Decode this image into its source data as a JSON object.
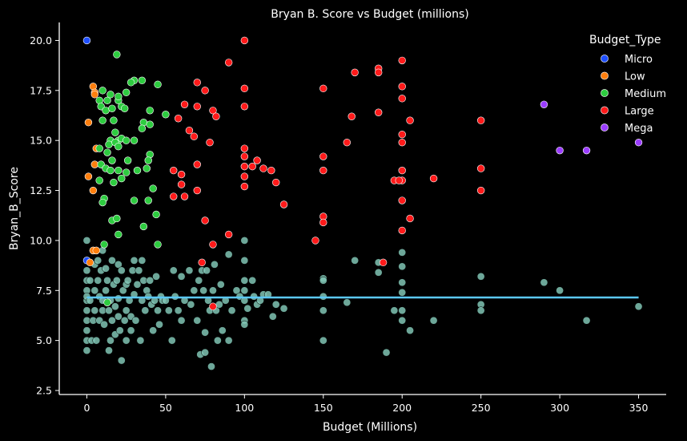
{
  "chart_data": {
    "type": "scatter",
    "title": "Bryan B. Score vs Budget (millions)",
    "xlabel": "Budget (Millions)",
    "ylabel": "Bryan_B_Score",
    "xlim": [
      -17.5,
      367.5
    ],
    "ylim": [
      2.3,
      20.9
    ],
    "x_ticks": [
      0,
      50,
      100,
      150,
      200,
      250,
      300,
      350
    ],
    "y_ticks": [
      2.5,
      5.0,
      7.5,
      10.0,
      12.5,
      15.0,
      17.5,
      20.0
    ],
    "y_tick_labels": [
      "2.5",
      "5.0",
      "7.5",
      "10.0",
      "12.5",
      "15.0",
      "17.5",
      "20.0"
    ],
    "grid": false,
    "legend": {
      "title": "Budget_Type",
      "placement": "top-right"
    },
    "background_series": {
      "color": "#80c4b4",
      "points": [
        [
          0,
          10.0
        ],
        [
          0,
          9.0
        ],
        [
          0,
          8.5
        ],
        [
          0,
          8.0
        ],
        [
          0,
          7.5
        ],
        [
          0,
          7.0
        ],
        [
          0,
          6.5
        ],
        [
          0,
          6.0
        ],
        [
          0,
          5.5
        ],
        [
          0,
          5.0
        ],
        [
          0,
          4.5
        ],
        [
          0,
          7.2
        ],
        [
          2,
          8.0
        ],
        [
          2,
          7.0
        ],
        [
          3,
          5.0
        ],
        [
          4,
          9.5
        ],
        [
          4,
          6.0
        ],
        [
          5,
          8.8
        ],
        [
          5,
          7.5
        ],
        [
          5,
          6.5
        ],
        [
          6,
          5.0
        ],
        [
          7,
          9.0
        ],
        [
          7,
          8.0
        ],
        [
          8,
          7.2
        ],
        [
          8,
          6.0
        ],
        [
          9,
          8.5
        ],
        [
          10,
          9.5
        ],
        [
          10,
          7.0
        ],
        [
          10,
          6.5
        ],
        [
          11,
          5.8
        ],
        [
          12,
          8.6
        ],
        [
          12,
          7.5
        ],
        [
          13,
          8.0
        ],
        [
          14,
          6.5
        ],
        [
          14,
          4.5
        ],
        [
          15,
          7.0
        ],
        [
          15,
          5.0
        ],
        [
          16,
          9.0
        ],
        [
          16,
          6.0
        ],
        [
          17,
          7.8
        ],
        [
          18,
          6.7
        ],
        [
          18,
          5.3
        ],
        [
          19,
          8.0
        ],
        [
          20,
          8.8
        ],
        [
          20,
          7.1
        ],
        [
          20,
          6.2
        ],
        [
          21,
          5.5
        ],
        [
          22,
          8.5
        ],
        [
          22,
          4.0
        ],
        [
          23,
          7.5
        ],
        [
          24,
          6.0
        ],
        [
          25,
          7.8
        ],
        [
          25,
          6.5
        ],
        [
          25,
          5.0
        ],
        [
          26,
          8.0
        ],
        [
          27,
          7.0
        ],
        [
          28,
          6.2
        ],
        [
          28,
          5.5
        ],
        [
          29,
          8.5
        ],
        [
          30,
          9.0
        ],
        [
          30,
          7.3
        ],
        [
          31,
          6.0
        ],
        [
          32,
          7.8
        ],
        [
          33,
          8.5
        ],
        [
          34,
          5.0
        ],
        [
          35,
          9.0
        ],
        [
          35,
          7.0
        ],
        [
          36,
          8.0
        ],
        [
          37,
          6.5
        ],
        [
          38,
          7.5
        ],
        [
          39,
          7.2
        ],
        [
          40,
          8.0
        ],
        [
          41,
          6.8
        ],
        [
          42,
          5.5
        ],
        [
          43,
          7.0
        ],
        [
          44,
          8.2
        ],
        [
          45,
          6.5
        ],
        [
          46,
          5.8
        ],
        [
          47,
          7.2
        ],
        [
          48,
          7.0
        ],
        [
          50,
          7.0
        ],
        [
          52,
          6.5
        ],
        [
          54,
          5.0
        ],
        [
          55,
          8.5
        ],
        [
          56,
          7.2
        ],
        [
          58,
          6.5
        ],
        [
          60,
          8.2
        ],
        [
          60,
          6.0
        ],
        [
          62,
          7.0
        ],
        [
          65,
          8.5
        ],
        [
          66,
          6.8
        ],
        [
          68,
          7.5
        ],
        [
          70,
          6.0
        ],
        [
          71,
          8.0
        ],
        [
          72,
          4.3
        ],
        [
          73,
          8.5
        ],
        [
          74,
          7.5
        ],
        [
          75,
          5.4
        ],
        [
          75,
          4.4
        ],
        [
          76,
          8.5
        ],
        [
          77,
          7.0
        ],
        [
          78,
          6.5
        ],
        [
          79,
          3.7
        ],
        [
          80,
          7.5
        ],
        [
          81,
          8.8
        ],
        [
          82,
          6.5
        ],
        [
          83,
          5.0
        ],
        [
          84,
          6.8
        ],
        [
          85,
          7.8
        ],
        [
          86,
          5.5
        ],
        [
          88,
          7.0
        ],
        [
          90,
          5.0
        ],
        [
          90,
          9.3
        ],
        [
          92,
          6.5
        ],
        [
          95,
          7.5
        ],
        [
          97,
          7.2
        ],
        [
          100,
          10.0
        ],
        [
          100,
          9.0
        ],
        [
          100,
          8.0
        ],
        [
          100,
          7.5
        ],
        [
          100,
          7.0
        ],
        [
          100,
          6.0
        ],
        [
          100,
          5.8
        ],
        [
          102,
          6.6
        ],
        [
          105,
          8.0
        ],
        [
          106,
          7.2
        ],
        [
          108,
          6.8
        ],
        [
          110,
          7.0
        ],
        [
          112,
          7.3
        ],
        [
          115,
          7.3
        ],
        [
          118,
          6.2
        ],
        [
          120,
          6.8
        ],
        [
          125,
          6.6
        ],
        [
          150,
          8.1
        ],
        [
          150,
          8.0
        ],
        [
          150,
          7.2
        ],
        [
          150,
          6.5
        ],
        [
          150,
          5.0
        ],
        [
          165,
          6.9
        ],
        [
          170,
          9.0
        ],
        [
          185,
          8.4
        ],
        [
          185,
          8.9
        ],
        [
          190,
          4.4
        ],
        [
          195,
          6.5
        ],
        [
          200,
          9.4
        ],
        [
          200,
          8.7
        ],
        [
          200,
          7.9
        ],
        [
          200,
          7.4
        ],
        [
          200,
          6.5
        ],
        [
          200,
          6.0
        ],
        [
          205,
          5.5
        ],
        [
          220,
          6.0
        ],
        [
          250,
          8.2
        ],
        [
          250,
          6.8
        ],
        [
          250,
          6.5
        ],
        [
          290,
          7.9
        ],
        [
          300,
          7.5
        ],
        [
          317,
          6.0
        ],
        [
          350,
          6.7
        ]
      ]
    },
    "series": [
      {
        "name": "Micro",
        "color": "#1f4fff",
        "points": [
          [
            0,
            20.0
          ],
          [
            0,
            9.0
          ]
        ]
      },
      {
        "name": "Low",
        "color": "#ff7f0e",
        "points": [
          [
            4,
            17.7
          ],
          [
            5,
            17.4
          ],
          [
            5,
            17.3
          ],
          [
            6,
            14.6
          ],
          [
            5,
            13.8
          ],
          [
            1,
            15.9
          ],
          [
            1,
            13.2
          ],
          [
            4,
            12.5
          ],
          [
            4,
            9.5
          ],
          [
            6,
            9.5
          ],
          [
            2,
            8.9
          ]
        ]
      },
      {
        "name": "Medium",
        "color": "#2ecc40",
        "points": [
          [
            19,
            19.3
          ],
          [
            30,
            18.0
          ],
          [
            35,
            18.0
          ],
          [
            45,
            17.8
          ],
          [
            10,
            17.5
          ],
          [
            13,
            17.0
          ],
          [
            15,
            17.3
          ],
          [
            20,
            17.0
          ],
          [
            20,
            17.2
          ],
          [
            22,
            16.7
          ],
          [
            25,
            17.4
          ],
          [
            28,
            17.9
          ],
          [
            8,
            17.0
          ],
          [
            9,
            16.7
          ],
          [
            12,
            16.5
          ],
          [
            16,
            16.6
          ],
          [
            24,
            16.6
          ],
          [
            40,
            16.5
          ],
          [
            10,
            16.0
          ],
          [
            17,
            16.0
          ],
          [
            36,
            15.9
          ],
          [
            40,
            15.8
          ],
          [
            35,
            15.6
          ],
          [
            50,
            16.3
          ],
          [
            15,
            15.0
          ],
          [
            18,
            15.4
          ],
          [
            20,
            15.0
          ],
          [
            22,
            15.1
          ],
          [
            25,
            15.0
          ],
          [
            30,
            15.0
          ],
          [
            14,
            14.8
          ],
          [
            18,
            14.9
          ],
          [
            20,
            14.7
          ],
          [
            8,
            14.6
          ],
          [
            40,
            14.3
          ],
          [
            13,
            14.4
          ],
          [
            16,
            14.0
          ],
          [
            26,
            14.0
          ],
          [
            39,
            14.0
          ],
          [
            9,
            13.8
          ],
          [
            12,
            13.6
          ],
          [
            15,
            13.5
          ],
          [
            20,
            13.5
          ],
          [
            25,
            13.4
          ],
          [
            32,
            13.5
          ],
          [
            38,
            13.6
          ],
          [
            8,
            13.0
          ],
          [
            17,
            12.9
          ],
          [
            22,
            13.1
          ],
          [
            42,
            12.6
          ],
          [
            30,
            12.0
          ],
          [
            11,
            12.1
          ],
          [
            39,
            12.0
          ],
          [
            10,
            11.9
          ],
          [
            16,
            11.0
          ],
          [
            19,
            11.1
          ],
          [
            44,
            11.3
          ],
          [
            36,
            10.7
          ],
          [
            20,
            10.3
          ],
          [
            11,
            9.8
          ],
          [
            45,
            9.8
          ],
          [
            13,
            6.9
          ]
        ]
      },
      {
        "name": "Large",
        "color": "#ff1a1a",
        "points": [
          [
            100,
            20.0
          ],
          [
            90,
            18.9
          ],
          [
            200,
            19.0
          ],
          [
            170,
            18.4
          ],
          [
            185,
            18.6
          ],
          [
            185,
            18.4
          ],
          [
            70,
            17.9
          ],
          [
            75,
            17.5
          ],
          [
            100,
            17.6
          ],
          [
            150,
            17.6
          ],
          [
            200,
            17.7
          ],
          [
            200,
            17.1
          ],
          [
            80,
            16.5
          ],
          [
            100,
            16.7
          ],
          [
            62,
            16.8
          ],
          [
            82,
            16.2
          ],
          [
            70,
            16.7
          ],
          [
            58,
            16.1
          ],
          [
            168,
            16.2
          ],
          [
            185,
            16.4
          ],
          [
            205,
            16.0
          ],
          [
            250,
            16.0
          ],
          [
            65,
            15.5
          ],
          [
            78,
            14.9
          ],
          [
            68,
            15.2
          ],
          [
            100,
            14.6
          ],
          [
            165,
            14.9
          ],
          [
            200,
            15.3
          ],
          [
            200,
            14.9
          ],
          [
            100,
            14.2
          ],
          [
            108,
            14.0
          ],
          [
            150,
            14.2
          ],
          [
            70,
            13.8
          ],
          [
            100,
            13.7
          ],
          [
            105,
            13.7
          ],
          [
            112,
            13.6
          ],
          [
            117,
            13.5
          ],
          [
            100,
            13.2
          ],
          [
            150,
            13.5
          ],
          [
            200,
            13.5
          ],
          [
            200,
            13.0
          ],
          [
            250,
            13.6
          ],
          [
            55,
            13.5
          ],
          [
            60,
            13.3
          ],
          [
            120,
            12.9
          ],
          [
            195,
            13.0
          ],
          [
            198,
            13.0
          ],
          [
            220,
            13.1
          ],
          [
            60,
            12.8
          ],
          [
            62,
            12.2
          ],
          [
            100,
            12.7
          ],
          [
            55,
            12.2
          ],
          [
            125,
            11.8
          ],
          [
            200,
            12.0
          ],
          [
            250,
            12.5
          ],
          [
            70,
            12.5
          ],
          [
            75,
            11.0
          ],
          [
            150,
            11.2
          ],
          [
            205,
            11.1
          ],
          [
            150,
            10.9
          ],
          [
            200,
            10.5
          ],
          [
            145,
            10.0
          ],
          [
            90,
            10.3
          ],
          [
            80,
            9.8
          ],
          [
            188,
            8.9
          ],
          [
            73,
            8.9
          ],
          [
            80,
            6.7
          ]
        ]
      },
      {
        "name": "Mega",
        "color": "#9b3dff",
        "points": [
          [
            290,
            16.8
          ],
          [
            300,
            14.5
          ],
          [
            317,
            14.5
          ],
          [
            350,
            14.9
          ]
        ]
      }
    ],
    "trend_line": {
      "color": "#5bc8f5",
      "x": [
        0,
        350
      ],
      "y": [
        7.15,
        7.15
      ]
    }
  }
}
